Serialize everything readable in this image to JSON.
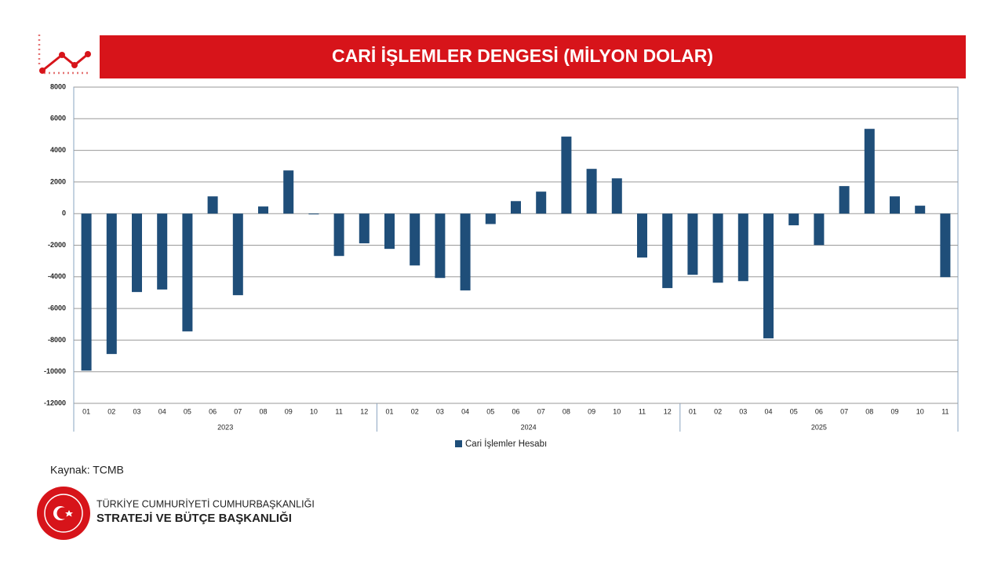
{
  "header": {
    "title": "CARİ İŞLEMLER DENGESİ (MİLYON DOLAR)"
  },
  "chart_data": {
    "type": "bar",
    "category_groups": [
      {
        "name": "2023",
        "categories": [
          "01",
          "02",
          "03",
          "04",
          "05",
          "06",
          "07",
          "08",
          "09",
          "10",
          "11",
          "12"
        ]
      },
      {
        "name": "2024",
        "categories": [
          "01",
          "02",
          "03",
          "04",
          "05",
          "06",
          "07",
          "08",
          "09",
          "10",
          "11",
          "12"
        ]
      },
      {
        "name": "2025",
        "categories": [
          "01",
          "02",
          "03",
          "04",
          "05",
          "06",
          "07",
          "08",
          "09",
          "10",
          "11"
        ]
      }
    ],
    "series": [
      {
        "name": "Cari İşlemler Hesabı",
        "color": "#1f4e79",
        "values": [
          -9930,
          -8880,
          -4960,
          -4800,
          -7450,
          1090,
          -5160,
          450,
          2730,
          -50,
          -2680,
          -1880,
          -2230,
          -3280,
          -4070,
          -4860,
          -660,
          790,
          1390,
          4870,
          2830,
          2230,
          -2780,
          -4710,
          -3870,
          -4370,
          -4270,
          -7890,
          -740,
          -1990,
          1740,
          5360,
          1090,
          500,
          -4020
        ]
      }
    ],
    "ylim": [
      -12000,
      8000
    ],
    "yticks": [
      -12000,
      -10000,
      -8000,
      -6000,
      -4000,
      -2000,
      0,
      2000,
      4000,
      6000,
      8000
    ],
    "grid": true,
    "legend": "bottom"
  },
  "source": "Kaynak: TCMB",
  "footer": {
    "line1": "TÜRKİYE CUMHURİYETİ CUMHURBAŞKANLIĞI",
    "line2": "STRATEJİ VE BÜTÇE BAŞKANLIĞI"
  }
}
